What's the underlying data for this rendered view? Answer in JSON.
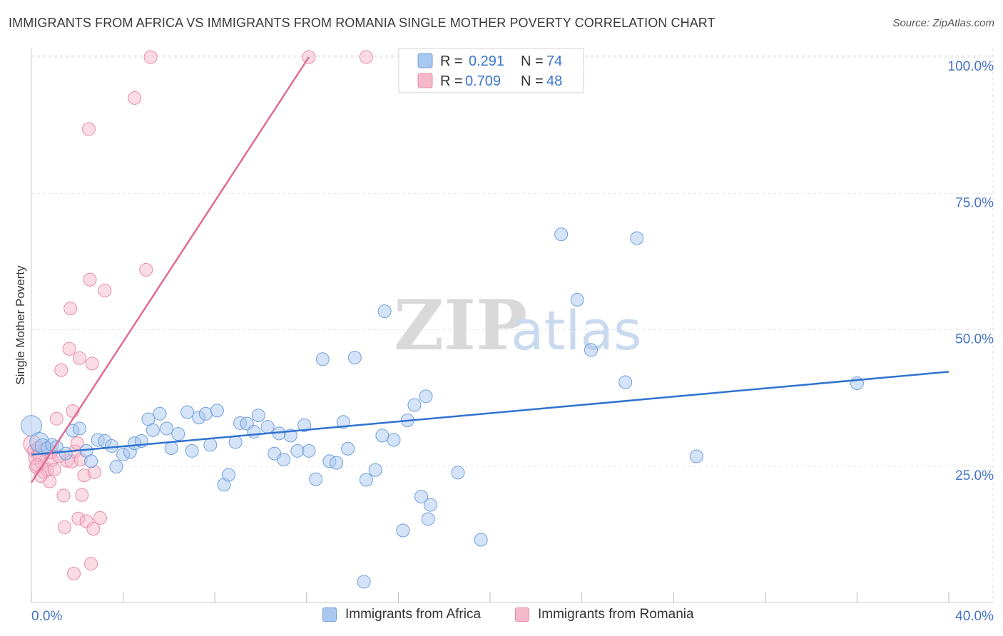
{
  "title": "IMMIGRANTS FROM AFRICA VS IMMIGRANTS FROM ROMANIA SINGLE MOTHER POVERTY CORRELATION CHART",
  "source": "Source: ZipAtlas.com",
  "watermark": {
    "zip": "ZIP",
    "atlas": "atlas"
  },
  "colors": {
    "africa_fill": "#a9c8f0",
    "africa_stroke": "#6f9fdc",
    "africa_line": "#2f72d0",
    "romania_fill": "#f6b9cc",
    "romania_stroke": "#e98aa8",
    "romania_line": "#e06b95",
    "tick_text": "#4472c4"
  },
  "legend": {
    "africa": {
      "r_label": "R =",
      "r_value": "0.291",
      "n_label": "N =",
      "n_value": "74"
    },
    "romania": {
      "r_label": "R =",
      "r_value": "0.709",
      "n_label": "N =",
      "n_value": "48"
    }
  },
  "chart_data": {
    "type": "scatter",
    "title": "IMMIGRANTS FROM AFRICA VS IMMIGRANTS FROM ROMANIA SINGLE MOTHER POVERTY CORRELATION CHART",
    "xlabel": "",
    "ylabel": "Single Mother Poverty",
    "xlim": [
      0,
      40
    ],
    "ylim": [
      0,
      102
    ],
    "x_tick_labels": [
      "0.0%",
      "40.0%"
    ],
    "y_ticks": [
      25,
      50,
      75,
      100
    ],
    "y_tick_labels": [
      "25.0%",
      "50.0%",
      "75.0%",
      "100.0%"
    ],
    "grid": true,
    "legend_position": "top-center",
    "series": [
      {
        "name": "Immigrants from Africa",
        "R": 0.291,
        "N": 74,
        "trend": {
          "x": [
            0,
            40
          ],
          "y": [
            27.1,
            42.3
          ]
        },
        "points": [
          {
            "x": 0.0,
            "y": 32.4,
            "s": 1.6
          },
          {
            "x": 0.35,
            "y": 29.4,
            "s": 1.5
          },
          {
            "x": 0.5,
            "y": 28.6,
            "s": 1.2
          },
          {
            "x": 0.7,
            "y": 28.3
          },
          {
            "x": 0.9,
            "y": 28.9
          },
          {
            "x": 1.1,
            "y": 28.5
          },
          {
            "x": 1.5,
            "y": 27.3
          },
          {
            "x": 1.8,
            "y": 31.5
          },
          {
            "x": 2.1,
            "y": 31.9
          },
          {
            "x": 2.4,
            "y": 27.8
          },
          {
            "x": 2.6,
            "y": 25.9
          },
          {
            "x": 2.9,
            "y": 29.8
          },
          {
            "x": 3.2,
            "y": 29.6
          },
          {
            "x": 3.5,
            "y": 28.7
          },
          {
            "x": 3.7,
            "y": 24.9
          },
          {
            "x": 4.0,
            "y": 27.1
          },
          {
            "x": 4.3,
            "y": 27.6
          },
          {
            "x": 4.5,
            "y": 29.2
          },
          {
            "x": 4.8,
            "y": 29.6
          },
          {
            "x": 5.1,
            "y": 33.6
          },
          {
            "x": 5.3,
            "y": 31.6
          },
          {
            "x": 5.6,
            "y": 34.6
          },
          {
            "x": 5.9,
            "y": 31.9
          },
          {
            "x": 6.1,
            "y": 28.3
          },
          {
            "x": 6.4,
            "y": 30.9
          },
          {
            "x": 6.8,
            "y": 34.9
          },
          {
            "x": 7.0,
            "y": 27.8
          },
          {
            "x": 7.3,
            "y": 33.9
          },
          {
            "x": 7.6,
            "y": 34.6
          },
          {
            "x": 7.8,
            "y": 28.9
          },
          {
            "x": 8.1,
            "y": 35.2
          },
          {
            "x": 8.4,
            "y": 21.6
          },
          {
            "x": 8.6,
            "y": 23.4
          },
          {
            "x": 8.9,
            "y": 29.4
          },
          {
            "x": 9.1,
            "y": 32.9
          },
          {
            "x": 9.4,
            "y": 32.8
          },
          {
            "x": 9.7,
            "y": 31.3
          },
          {
            "x": 9.9,
            "y": 34.3
          },
          {
            "x": 10.3,
            "y": 32.2
          },
          {
            "x": 10.6,
            "y": 27.3
          },
          {
            "x": 10.8,
            "y": 31.0
          },
          {
            "x": 11.0,
            "y": 26.2
          },
          {
            "x": 11.3,
            "y": 30.6
          },
          {
            "x": 11.6,
            "y": 27.8
          },
          {
            "x": 11.9,
            "y": 32.5
          },
          {
            "x": 12.1,
            "y": 27.8
          },
          {
            "x": 12.4,
            "y": 22.6
          },
          {
            "x": 12.7,
            "y": 44.6
          },
          {
            "x": 13.0,
            "y": 25.9
          },
          {
            "x": 13.3,
            "y": 25.6
          },
          {
            "x": 13.6,
            "y": 33.1
          },
          {
            "x": 13.8,
            "y": 28.2
          },
          {
            "x": 14.1,
            "y": 44.9
          },
          {
            "x": 14.5,
            "y": 3.8
          },
          {
            "x": 14.6,
            "y": 22.5
          },
          {
            "x": 15.0,
            "y": 24.3
          },
          {
            "x": 15.3,
            "y": 30.6
          },
          {
            "x": 15.4,
            "y": 53.4
          },
          {
            "x": 15.8,
            "y": 29.8
          },
          {
            "x": 16.2,
            "y": 13.2
          },
          {
            "x": 16.4,
            "y": 33.4
          },
          {
            "x": 16.7,
            "y": 36.2
          },
          {
            "x": 17.0,
            "y": 19.4
          },
          {
            "x": 17.2,
            "y": 37.8
          },
          {
            "x": 17.3,
            "y": 15.3
          },
          {
            "x": 17.4,
            "y": 17.9
          },
          {
            "x": 18.6,
            "y": 23.8
          },
          {
            "x": 19.6,
            "y": 11.5
          },
          {
            "x": 23.1,
            "y": 67.5
          },
          {
            "x": 23.8,
            "y": 55.5
          },
          {
            "x": 24.4,
            "y": 46.3
          },
          {
            "x": 25.9,
            "y": 40.4
          },
          {
            "x": 26.4,
            "y": 66.8
          },
          {
            "x": 29.0,
            "y": 26.8
          },
          {
            "x": 36.0,
            "y": 40.2
          }
        ]
      },
      {
        "name": "Immigrants from Romania",
        "R": 0.709,
        "N": 48,
        "trend": {
          "x": [
            0,
            12.1
          ],
          "y": [
            22.0,
            100.0
          ]
        },
        "points": [
          {
            "x": 0.05,
            "y": 29.0,
            "s": 1.4
          },
          {
            "x": 0.1,
            "y": 27.8
          },
          {
            "x": 0.2,
            "y": 24.9
          },
          {
            "x": 0.3,
            "y": 28.4
          },
          {
            "x": 0.45,
            "y": 25.6
          },
          {
            "x": 0.55,
            "y": 23.9
          },
          {
            "x": 0.7,
            "y": 24.3
          },
          {
            "x": 0.8,
            "y": 22.2
          },
          {
            "x": 0.9,
            "y": 26.1
          },
          {
            "x": 1.0,
            "y": 24.4
          },
          {
            "x": 1.1,
            "y": 33.7
          },
          {
            "x": 1.3,
            "y": 42.6
          },
          {
            "x": 1.4,
            "y": 19.6
          },
          {
            "x": 1.45,
            "y": 13.8
          },
          {
            "x": 1.55,
            "y": 26.0
          },
          {
            "x": 1.65,
            "y": 46.5
          },
          {
            "x": 1.7,
            "y": 53.9
          },
          {
            "x": 1.8,
            "y": 35.1
          },
          {
            "x": 1.85,
            "y": 5.3
          },
          {
            "x": 1.9,
            "y": 27.7
          },
          {
            "x": 2.0,
            "y": 29.2
          },
          {
            "x": 2.05,
            "y": 15.4
          },
          {
            "x": 2.1,
            "y": 44.8
          },
          {
            "x": 2.2,
            "y": 19.7
          },
          {
            "x": 2.3,
            "y": 23.3
          },
          {
            "x": 2.4,
            "y": 14.9
          },
          {
            "x": 2.5,
            "y": 86.8
          },
          {
            "x": 2.55,
            "y": 59.2
          },
          {
            "x": 2.6,
            "y": 7.1
          },
          {
            "x": 2.65,
            "y": 43.8
          },
          {
            "x": 2.7,
            "y": 13.5
          },
          {
            "x": 2.75,
            "y": 23.9
          },
          {
            "x": 3.0,
            "y": 15.5
          },
          {
            "x": 3.2,
            "y": 57.2
          },
          {
            "x": 4.5,
            "y": 92.5
          },
          {
            "x": 5.0,
            "y": 61.0
          },
          {
            "x": 5.2,
            "y": 100.0
          },
          {
            "x": 12.1,
            "y": 100.0
          },
          {
            "x": 14.6,
            "y": 100.0
          },
          {
            "x": 0.15,
            "y": 26.5
          },
          {
            "x": 0.35,
            "y": 27.0
          },
          {
            "x": 0.6,
            "y": 28.1
          },
          {
            "x": 0.25,
            "y": 25.2
          },
          {
            "x": 0.85,
            "y": 27.5
          },
          {
            "x": 1.2,
            "y": 26.8
          },
          {
            "x": 1.75,
            "y": 25.8
          },
          {
            "x": 2.15,
            "y": 26.2
          },
          {
            "x": 0.4,
            "y": 23.2
          }
        ]
      }
    ]
  },
  "bottom_legend": {
    "africa": "Immigrants from Africa",
    "romania": "Immigrants from Romania"
  }
}
